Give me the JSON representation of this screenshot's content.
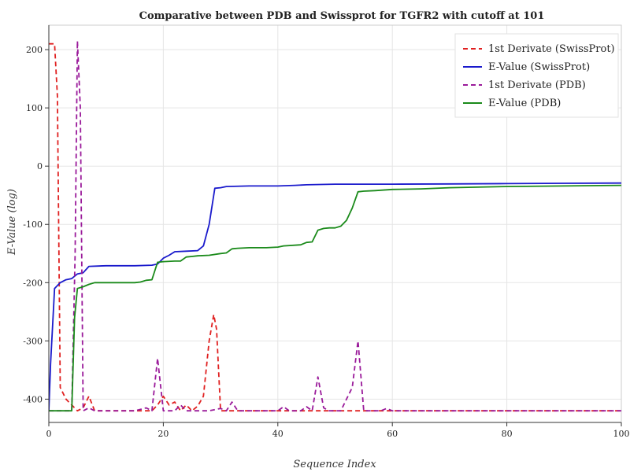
{
  "chart_data": {
    "type": "line",
    "title": "Comparative between PDB and Swissprot for TGFR2 with cutoff at 101",
    "xlabel": "Sequence Index",
    "ylabel": "E-Value (log)",
    "xlim": [
      0,
      100
    ],
    "ylim": [
      -440,
      242
    ],
    "x_ticks": [
      0,
      20,
      40,
      60,
      80,
      100
    ],
    "y_ticks": [
      -400,
      -300,
      -200,
      -100,
      0,
      100,
      200
    ],
    "grid": true,
    "legend_position": "top-right",
    "series": [
      {
        "name": "1st Derivate (SwissProt)",
        "color": "#e02020",
        "style": "dashed",
        "points": [
          [
            0,
            210
          ],
          [
            0.5,
            210
          ],
          [
            1,
            210
          ],
          [
            1.5,
            120
          ],
          [
            2,
            -380
          ],
          [
            3,
            -400
          ],
          [
            4,
            -410
          ],
          [
            5,
            -420
          ],
          [
            6,
            -415
          ],
          [
            7,
            -395
          ],
          [
            8,
            -420
          ],
          [
            10,
            -420
          ],
          [
            15,
            -420
          ],
          [
            18,
            -420
          ],
          [
            19,
            -410
          ],
          [
            20,
            -395
          ],
          [
            21,
            -410
          ],
          [
            22,
            -405
          ],
          [
            23,
            -420
          ],
          [
            24,
            -410
          ],
          [
            25,
            -420
          ],
          [
            26,
            -412
          ],
          [
            27,
            -395
          ],
          [
            28,
            -300
          ],
          [
            28.8,
            -255
          ],
          [
            29.3,
            -280
          ],
          [
            30,
            -420
          ],
          [
            35,
            -420
          ],
          [
            40,
            -420
          ],
          [
            45,
            -420
          ],
          [
            50,
            -420
          ],
          [
            60,
            -420
          ],
          [
            70,
            -420
          ],
          [
            80,
            -420
          ],
          [
            90,
            -420
          ],
          [
            100,
            -420
          ]
        ]
      },
      {
        "name": "E-Value (SwissProt)",
        "color": "#1a1acc",
        "style": "solid",
        "points": [
          [
            0,
            -420
          ],
          [
            0.3,
            -340
          ],
          [
            1,
            -210
          ],
          [
            2,
            -200
          ],
          [
            3,
            -195
          ],
          [
            4,
            -193
          ],
          [
            5,
            -185
          ],
          [
            6,
            -183
          ],
          [
            7,
            -172
          ],
          [
            10,
            -171
          ],
          [
            15,
            -171
          ],
          [
            18,
            -170
          ],
          [
            19,
            -168
          ],
          [
            20,
            -158
          ],
          [
            21,
            -153
          ],
          [
            22,
            -147
          ],
          [
            24,
            -146
          ],
          [
            26,
            -145
          ],
          [
            27,
            -137
          ],
          [
            28,
            -100
          ],
          [
            29,
            -38
          ],
          [
            30,
            -37
          ],
          [
            31,
            -35
          ],
          [
            35,
            -34
          ],
          [
            40,
            -34
          ],
          [
            43,
            -33
          ],
          [
            45,
            -32
          ],
          [
            50,
            -31
          ],
          [
            60,
            -31
          ],
          [
            70,
            -30.5
          ],
          [
            80,
            -30
          ],
          [
            90,
            -29.5
          ],
          [
            100,
            -29
          ]
        ]
      },
      {
        "name": "1st Derivate (PDB)",
        "color": "#9a1a9a",
        "style": "dashed",
        "points": [
          [
            0,
            -420
          ],
          [
            3,
            -420
          ],
          [
            4,
            -420
          ],
          [
            4.6,
            -150
          ],
          [
            5,
            215
          ],
          [
            5.5,
            100
          ],
          [
            6,
            -420
          ],
          [
            7,
            -415
          ],
          [
            8,
            -420
          ],
          [
            10,
            -420
          ],
          [
            15,
            -420
          ],
          [
            17,
            -415
          ],
          [
            18,
            -420
          ],
          [
            19,
            -330
          ],
          [
            20,
            -420
          ],
          [
            22,
            -420
          ],
          [
            23,
            -410
          ],
          [
            24,
            -420
          ],
          [
            26,
            -420
          ],
          [
            28,
            -420
          ],
          [
            30,
            -416
          ],
          [
            31,
            -420
          ],
          [
            32,
            -405
          ],
          [
            33,
            -420
          ],
          [
            35,
            -420
          ],
          [
            40,
            -420
          ],
          [
            41,
            -413
          ],
          [
            42,
            -420
          ],
          [
            44,
            -420
          ],
          [
            45,
            -413
          ],
          [
            46,
            -420
          ],
          [
            47,
            -362
          ],
          [
            48,
            -415
          ],
          [
            49,
            -420
          ],
          [
            51,
            -420
          ],
          [
            52,
            -400
          ],
          [
            53,
            -380
          ],
          [
            54,
            -300
          ],
          [
            55,
            -420
          ],
          [
            58,
            -420
          ],
          [
            59,
            -416
          ],
          [
            60,
            -420
          ],
          [
            70,
            -420
          ],
          [
            80,
            -420
          ],
          [
            90,
            -420
          ],
          [
            100,
            -420
          ]
        ]
      },
      {
        "name": "E-Value (PDB)",
        "color": "#1a8a1a",
        "style": "solid",
        "points": [
          [
            0,
            -420
          ],
          [
            2,
            -420
          ],
          [
            3,
            -420
          ],
          [
            4,
            -420
          ],
          [
            4.5,
            -260
          ],
          [
            5,
            -210
          ],
          [
            6,
            -207
          ],
          [
            7,
            -203
          ],
          [
            8,
            -200
          ],
          [
            10,
            -200
          ],
          [
            15,
            -200
          ],
          [
            16,
            -199
          ],
          [
            17,
            -196
          ],
          [
            18,
            -195
          ],
          [
            19,
            -165
          ],
          [
            20,
            -164
          ],
          [
            22,
            -163
          ],
          [
            23,
            -163
          ],
          [
            24,
            -156
          ],
          [
            25,
            -155
          ],
          [
            26,
            -154
          ],
          [
            28,
            -153
          ],
          [
            30,
            -150
          ],
          [
            31,
            -149
          ],
          [
            32,
            -142
          ],
          [
            33,
            -141
          ],
          [
            35,
            -140
          ],
          [
            38,
            -140
          ],
          [
            40,
            -139
          ],
          [
            41,
            -137
          ],
          [
            44,
            -135
          ],
          [
            45,
            -131
          ],
          [
            46,
            -130
          ],
          [
            47,
            -110
          ],
          [
            48,
            -107
          ],
          [
            49,
            -106
          ],
          [
            50,
            -106
          ],
          [
            51,
            -103
          ],
          [
            52,
            -93
          ],
          [
            53,
            -72
          ],
          [
            54,
            -44
          ],
          [
            55,
            -43
          ],
          [
            57,
            -42
          ],
          [
            60,
            -40
          ],
          [
            65,
            -39
          ],
          [
            70,
            -37
          ],
          [
            80,
            -35
          ],
          [
            90,
            -34
          ],
          [
            100,
            -33
          ]
        ]
      }
    ]
  }
}
